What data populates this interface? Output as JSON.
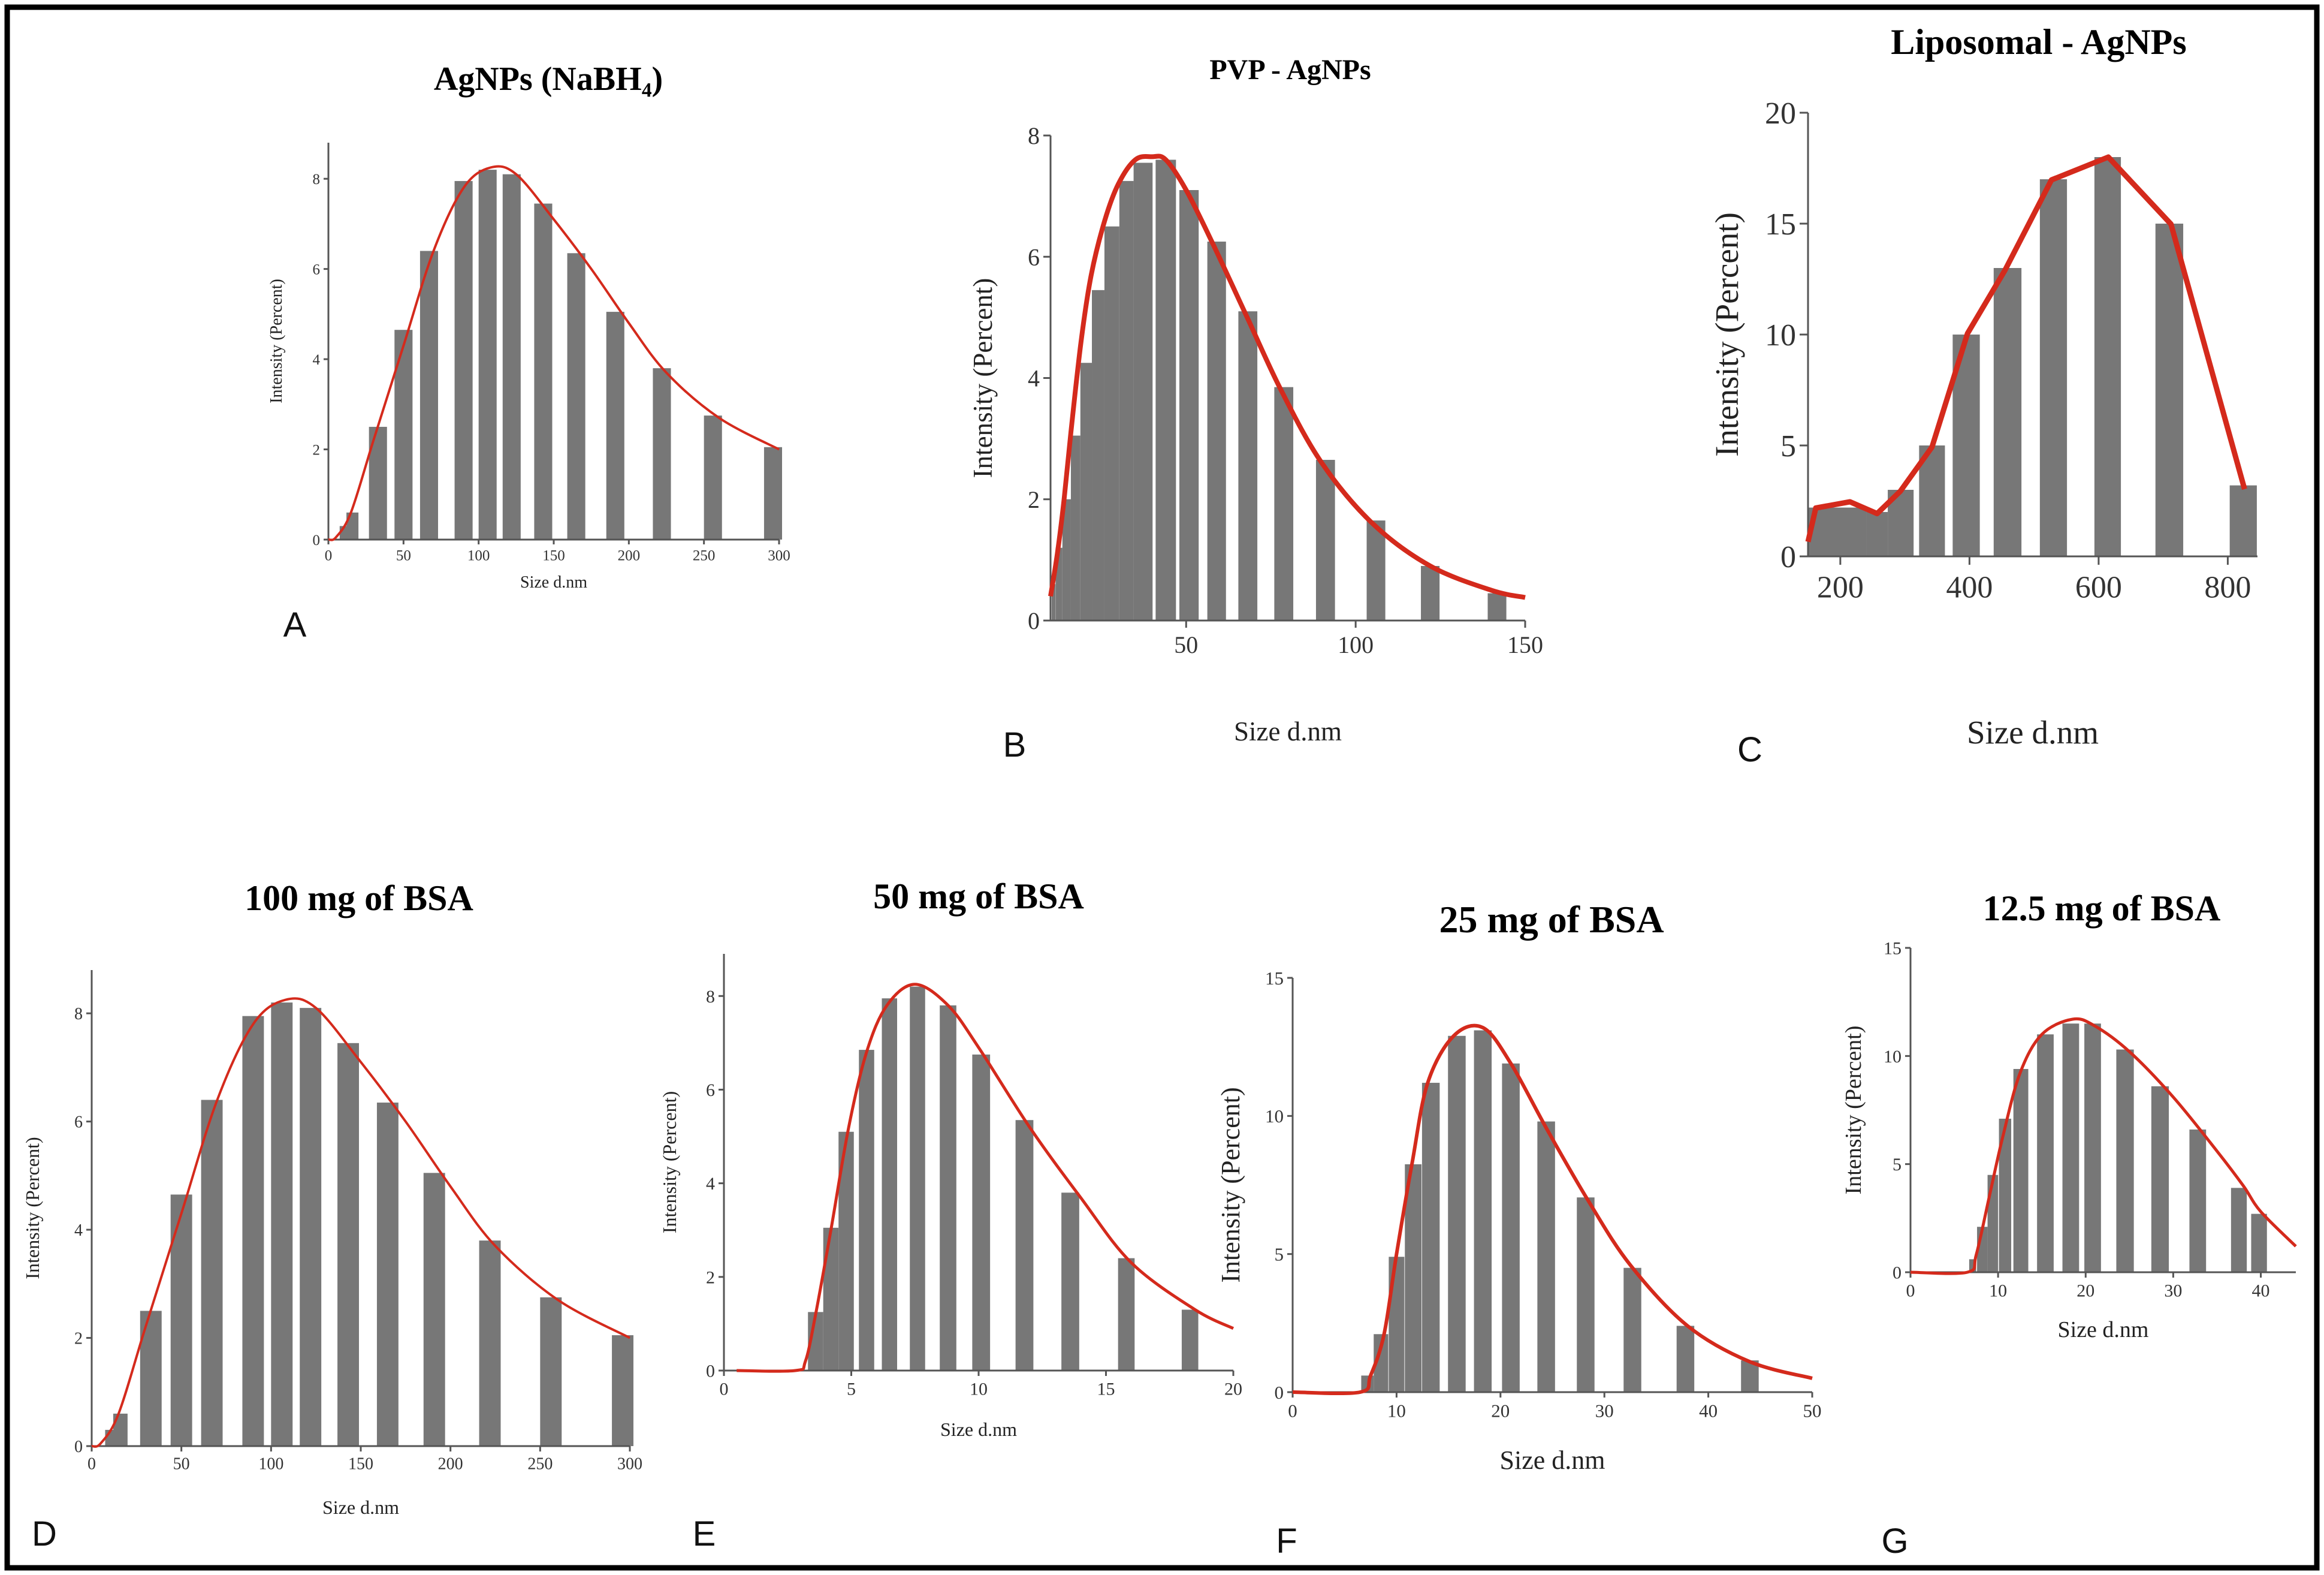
{
  "colors": {
    "bar": "#777777",
    "curve": "#d42a1c",
    "axis": "#555555"
  },
  "chart_data": [
    {
      "id": "A",
      "panel_label": "A",
      "type": "bar",
      "title": "AgNPs (NaBH₄)",
      "xlabel": "Size d.nm",
      "ylabel": "Intensity (Percent)",
      "xlim": [
        0,
        300
      ],
      "ylim": [
        0,
        8.8
      ],
      "xticks": [
        0,
        50,
        100,
        150,
        200,
        250,
        300
      ],
      "yticks": [
        0,
        2,
        4,
        6,
        8
      ],
      "bars": [
        {
          "x": 10,
          "y": 0.3,
          "w": 5
        },
        {
          "x": 16,
          "y": 0.6,
          "w": 8
        },
        {
          "x": 33,
          "y": 2.5,
          "w": 12
        },
        {
          "x": 50,
          "y": 4.65,
          "w": 12
        },
        {
          "x": 67,
          "y": 6.4,
          "w": 12
        },
        {
          "x": 90,
          "y": 7.95,
          "w": 12
        },
        {
          "x": 106,
          "y": 8.2,
          "w": 12
        },
        {
          "x": 122,
          "y": 8.1,
          "w": 12
        },
        {
          "x": 143,
          "y": 7.45,
          "w": 12
        },
        {
          "x": 165,
          "y": 6.35,
          "w": 12
        },
        {
          "x": 191,
          "y": 5.05,
          "w": 12
        },
        {
          "x": 222,
          "y": 3.8,
          "w": 12
        },
        {
          "x": 256,
          "y": 2.75,
          "w": 12
        },
        {
          "x": 296,
          "y": 2.05,
          "w": 12
        }
      ],
      "curve": [
        [
          0,
          0
        ],
        [
          5,
          0.05
        ],
        [
          15,
          0.6
        ],
        [
          30,
          2.2
        ],
        [
          50,
          4.3
        ],
        [
          70,
          6.4
        ],
        [
          90,
          7.8
        ],
        [
          108,
          8.25
        ],
        [
          125,
          8.1
        ],
        [
          150,
          7.1
        ],
        [
          175,
          6.0
        ],
        [
          200,
          4.8
        ],
        [
          225,
          3.7
        ],
        [
          260,
          2.7
        ],
        [
          300,
          2.0
        ]
      ],
      "smooth": true
    },
    {
      "id": "B",
      "panel_label": "B",
      "type": "bar",
      "title": "PVP - AgNPs",
      "xlabel": "Size d.nm",
      "ylabel": "Intensity (Percent)",
      "xlim": [
        10,
        150
      ],
      "ylim": [
        0,
        8
      ],
      "xticks": [
        50,
        100,
        150
      ],
      "yticks": [
        0,
        2,
        4,
        6,
        8
      ],
      "bars": [
        {
          "x": 10.9,
          "y": 0.6,
          "w": 1.1
        },
        {
          "x": 12.5,
          "y": 1.2,
          "w": 2
        },
        {
          "x": 14.75,
          "y": 2.0,
          "w": 2.5
        },
        {
          "x": 17.4,
          "y": 3.05,
          "w": 2.8
        },
        {
          "x": 20.5,
          "y": 4.25,
          "w": 3.4
        },
        {
          "x": 24.05,
          "y": 5.45,
          "w": 3.7
        },
        {
          "x": 28.1,
          "y": 6.5,
          "w": 4.4
        },
        {
          "x": 32.4,
          "y": 7.25,
          "w": 4.2
        },
        {
          "x": 37.3,
          "y": 7.55,
          "w": 5.6
        },
        {
          "x": 44,
          "y": 7.6,
          "w": 6
        },
        {
          "x": 50.85,
          "y": 7.1,
          "w": 5.7
        },
        {
          "x": 59,
          "y": 6.25,
          "w": 5.5
        },
        {
          "x": 68.2,
          "y": 5.1,
          "w": 5.6
        },
        {
          "x": 78.8,
          "y": 3.85,
          "w": 5.6
        },
        {
          "x": 91.1,
          "y": 2.65,
          "w": 5.6
        },
        {
          "x": 106,
          "y": 1.65,
          "w": 5.5
        },
        {
          "x": 122,
          "y": 0.9,
          "w": 5.5
        },
        {
          "x": 141.7,
          "y": 0.45,
          "w": 5.5
        }
      ],
      "curve": [
        [
          10,
          0.4
        ],
        [
          12,
          1.1
        ],
        [
          14,
          2.0
        ],
        [
          16,
          3.1
        ],
        [
          19,
          4.6
        ],
        [
          22,
          5.7
        ],
        [
          26,
          6.6
        ],
        [
          30,
          7.2
        ],
        [
          35,
          7.6
        ],
        [
          40,
          7.65
        ],
        [
          44,
          7.6
        ],
        [
          50,
          7.1
        ],
        [
          58,
          6.2
        ],
        [
          68,
          5.0
        ],
        [
          78,
          3.8
        ],
        [
          90,
          2.6
        ],
        [
          105,
          1.6
        ],
        [
          122,
          0.9
        ],
        [
          140,
          0.5
        ],
        [
          150,
          0.38
        ]
      ],
      "smooth": true
    },
    {
      "id": "C",
      "panel_label": "C",
      "type": "bar",
      "title": "Liposomal - AgNPs",
      "xlabel": "Size d.nm",
      "ylabel": "Intensity (Percent)",
      "xlim": [
        150,
        846
      ],
      "ylim": [
        0,
        20
      ],
      "xticks": [
        200,
        400,
        600,
        800
      ],
      "yticks": [
        0,
        5,
        10,
        15,
        20
      ],
      "bars": [
        {
          "x": 195,
          "y": 2.2,
          "w": 91
        },
        {
          "x": 257,
          "y": 2.0,
          "w": 33
        },
        {
          "x": 293.5,
          "y": 3.0,
          "w": 40
        },
        {
          "x": 342,
          "y": 5,
          "w": 40
        },
        {
          "x": 395,
          "y": 10,
          "w": 42
        },
        {
          "x": 459,
          "y": 13,
          "w": 43
        },
        {
          "x": 530,
          "y": 17,
          "w": 42
        },
        {
          "x": 614,
          "y": 18,
          "w": 41
        },
        {
          "x": 709.5,
          "y": 15,
          "w": 43
        },
        {
          "x": 824,
          "y": 3.2,
          "w": 42
        }
      ],
      "curve": [
        [
          150,
          0.66
        ],
        [
          162,
          2.18
        ],
        [
          215,
          2.46
        ],
        [
          257,
          1.93
        ],
        [
          293,
          2.94
        ],
        [
          342,
          4.93
        ],
        [
          397,
          10.05
        ],
        [
          455,
          12.9
        ],
        [
          527,
          16.97
        ],
        [
          615,
          18.0
        ],
        [
          712,
          14.98
        ],
        [
          826,
          3.03
        ]
      ],
      "smooth": false
    },
    {
      "id": "D",
      "panel_label": "D",
      "type": "bar",
      "title": "100 mg of BSA",
      "xlabel": "Size d.nm",
      "ylabel": "Intensity (Percent)",
      "xlim": [
        0,
        300
      ],
      "ylim": [
        0,
        8.8
      ],
      "xticks": [
        0,
        50,
        100,
        150,
        200,
        250,
        300
      ],
      "yticks": [
        0,
        2,
        4,
        6,
        8
      ],
      "bars": [
        {
          "x": 10,
          "y": 0.3,
          "w": 5
        },
        {
          "x": 16,
          "y": 0.6,
          "w": 8
        },
        {
          "x": 33,
          "y": 2.5,
          "w": 12
        },
        {
          "x": 50,
          "y": 4.65,
          "w": 12
        },
        {
          "x": 67,
          "y": 6.4,
          "w": 12
        },
        {
          "x": 90,
          "y": 7.95,
          "w": 12
        },
        {
          "x": 106,
          "y": 8.2,
          "w": 12
        },
        {
          "x": 122,
          "y": 8.1,
          "w": 12
        },
        {
          "x": 143,
          "y": 7.45,
          "w": 12
        },
        {
          "x": 165,
          "y": 6.35,
          "w": 12
        },
        {
          "x": 191,
          "y": 5.05,
          "w": 12
        },
        {
          "x": 222,
          "y": 3.8,
          "w": 12
        },
        {
          "x": 256,
          "y": 2.75,
          "w": 12
        },
        {
          "x": 296,
          "y": 2.05,
          "w": 12
        }
      ],
      "curve": [
        [
          0,
          0
        ],
        [
          5,
          0.05
        ],
        [
          15,
          0.6
        ],
        [
          30,
          2.2
        ],
        [
          50,
          4.3
        ],
        [
          70,
          6.4
        ],
        [
          90,
          7.8
        ],
        [
          108,
          8.25
        ],
        [
          125,
          8.1
        ],
        [
          150,
          7.1
        ],
        [
          175,
          6.0
        ],
        [
          200,
          4.8
        ],
        [
          225,
          3.7
        ],
        [
          260,
          2.7
        ],
        [
          300,
          2.0
        ]
      ],
      "smooth": true
    },
    {
      "id": "E",
      "panel_label": "E",
      "type": "bar",
      "title": "50 mg of BSA",
      "xlabel": "Size d.nm",
      "ylabel": "Intensity (Percent)",
      "xlim": [
        0,
        20
      ],
      "ylim": [
        0,
        8.9
      ],
      "xticks": [
        0,
        5,
        10,
        15,
        20
      ],
      "yticks": [
        0,
        2,
        4,
        6,
        8
      ],
      "bars": [
        {
          "x": 3.6,
          "y": 1.25,
          "w": 0.6
        },
        {
          "x": 4.2,
          "y": 3.05,
          "w": 0.6
        },
        {
          "x": 4.8,
          "y": 5.1,
          "w": 0.6
        },
        {
          "x": 5.6,
          "y": 6.85,
          "w": 0.6
        },
        {
          "x": 6.5,
          "y": 7.95,
          "w": 0.6
        },
        {
          "x": 7.6,
          "y": 8.2,
          "w": 0.6
        },
        {
          "x": 8.8,
          "y": 7.8,
          "w": 0.65
        },
        {
          "x": 10.1,
          "y": 6.75,
          "w": 0.7
        },
        {
          "x": 11.8,
          "y": 5.35,
          "w": 0.7
        },
        {
          "x": 13.6,
          "y": 3.8,
          "w": 0.7
        },
        {
          "x": 15.8,
          "y": 2.4,
          "w": 0.65
        },
        {
          "x": 18.3,
          "y": 1.3,
          "w": 0.65
        }
      ],
      "curve": [
        [
          0.5,
          0
        ],
        [
          2.8,
          0
        ],
        [
          3.2,
          0.2
        ],
        [
          3.6,
          1.2
        ],
        [
          4.2,
          3.0
        ],
        [
          4.9,
          5.2
        ],
        [
          5.6,
          6.8
        ],
        [
          6.4,
          7.8
        ],
        [
          7.5,
          8.25
        ],
        [
          8.8,
          7.8
        ],
        [
          10,
          6.9
        ],
        [
          12,
          5.2
        ],
        [
          14,
          3.7
        ],
        [
          16,
          2.3
        ],
        [
          18.5,
          1.3
        ],
        [
          20,
          0.9
        ]
      ],
      "smooth": true
    },
    {
      "id": "F",
      "panel_label": "F",
      "type": "bar",
      "title": "25 mg of BSA",
      "xlabel": "Size d.nm",
      "ylabel": "Intensity (Percent)",
      "xlim": [
        0,
        50
      ],
      "ylim": [
        0,
        15
      ],
      "xticks": [
        0,
        10,
        20,
        30,
        40,
        50
      ],
      "yticks": [
        0,
        5,
        10,
        15
      ],
      "bars": [
        {
          "x": 7.2,
          "y": 0.6,
          "w": 1.2
        },
        {
          "x": 8.5,
          "y": 2.1,
          "w": 1.4
        },
        {
          "x": 10,
          "y": 4.9,
          "w": 1.5
        },
        {
          "x": 11.6,
          "y": 8.25,
          "w": 1.6
        },
        {
          "x": 13.3,
          "y": 11.2,
          "w": 1.7
        },
        {
          "x": 15.8,
          "y": 12.9,
          "w": 1.7
        },
        {
          "x": 18.3,
          "y": 13.1,
          "w": 1.7
        },
        {
          "x": 21,
          "y": 11.9,
          "w": 1.7
        },
        {
          "x": 24.4,
          "y": 9.8,
          "w": 1.7
        },
        {
          "x": 28.2,
          "y": 7.05,
          "w": 1.7
        },
        {
          "x": 32.7,
          "y": 4.5,
          "w": 1.7
        },
        {
          "x": 37.8,
          "y": 2.4,
          "w": 1.7
        },
        {
          "x": 44,
          "y": 1.15,
          "w": 1.7
        }
      ],
      "curve": [
        [
          0,
          0
        ],
        [
          6.5,
          0
        ],
        [
          7.5,
          0.6
        ],
        [
          8.8,
          2.1
        ],
        [
          10,
          5
        ],
        [
          11.5,
          8.3
        ],
        [
          13,
          11.2
        ],
        [
          15.5,
          12.9
        ],
        [
          18.3,
          13.2
        ],
        [
          21,
          11.9
        ],
        [
          24.5,
          9.5
        ],
        [
          28.5,
          6.9
        ],
        [
          32.5,
          4.6
        ],
        [
          38,
          2.4
        ],
        [
          44,
          1.1
        ],
        [
          50,
          0.5
        ]
      ],
      "smooth": true
    },
    {
      "id": "G",
      "panel_label": "G",
      "type": "bar",
      "title": "12.5 mg of BSA",
      "xlabel": "Size d.nm",
      "ylabel": "Intensity (Percent)",
      "xlim": [
        0,
        44
      ],
      "ylim": [
        0,
        15
      ],
      "xticks": [
        0,
        10,
        20,
        30,
        40
      ],
      "yticks": [
        0,
        5,
        10,
        15
      ],
      "bars": [
        {
          "x": 7.1,
          "y": 0.6,
          "w": 0.8
        },
        {
          "x": 8.2,
          "y": 2.1,
          "w": 1.2
        },
        {
          "x": 9.4,
          "y": 4.5,
          "w": 1.2
        },
        {
          "x": 10.8,
          "y": 7.1,
          "w": 1.4
        },
        {
          "x": 12.6,
          "y": 9.4,
          "w": 1.7
        },
        {
          "x": 15.4,
          "y": 11.0,
          "w": 1.9
        },
        {
          "x": 18.3,
          "y": 11.5,
          "w": 1.9
        },
        {
          "x": 20.8,
          "y": 11.5,
          "w": 1.9
        },
        {
          "x": 24.5,
          "y": 10.3,
          "w": 2.0
        },
        {
          "x": 28.5,
          "y": 8.6,
          "w": 2.0
        },
        {
          "x": 32.8,
          "y": 6.6,
          "w": 1.9
        },
        {
          "x": 37.5,
          "y": 3.9,
          "w": 1.8
        },
        {
          "x": 39.8,
          "y": 2.7,
          "w": 1.8
        }
      ],
      "curve": [
        [
          0,
          0
        ],
        [
          6.5,
          0
        ],
        [
          7.5,
          0.8
        ],
        [
          9,
          3.5
        ],
        [
          10.5,
          6.2
        ],
        [
          12.5,
          9.2
        ],
        [
          15,
          11
        ],
        [
          18.5,
          11.7
        ],
        [
          21,
          11.4
        ],
        [
          25,
          10.2
        ],
        [
          30,
          8.1
        ],
        [
          35,
          5.6
        ],
        [
          38,
          4.0
        ],
        [
          40,
          2.8
        ],
        [
          44,
          1.2
        ]
      ],
      "smooth": true
    }
  ]
}
